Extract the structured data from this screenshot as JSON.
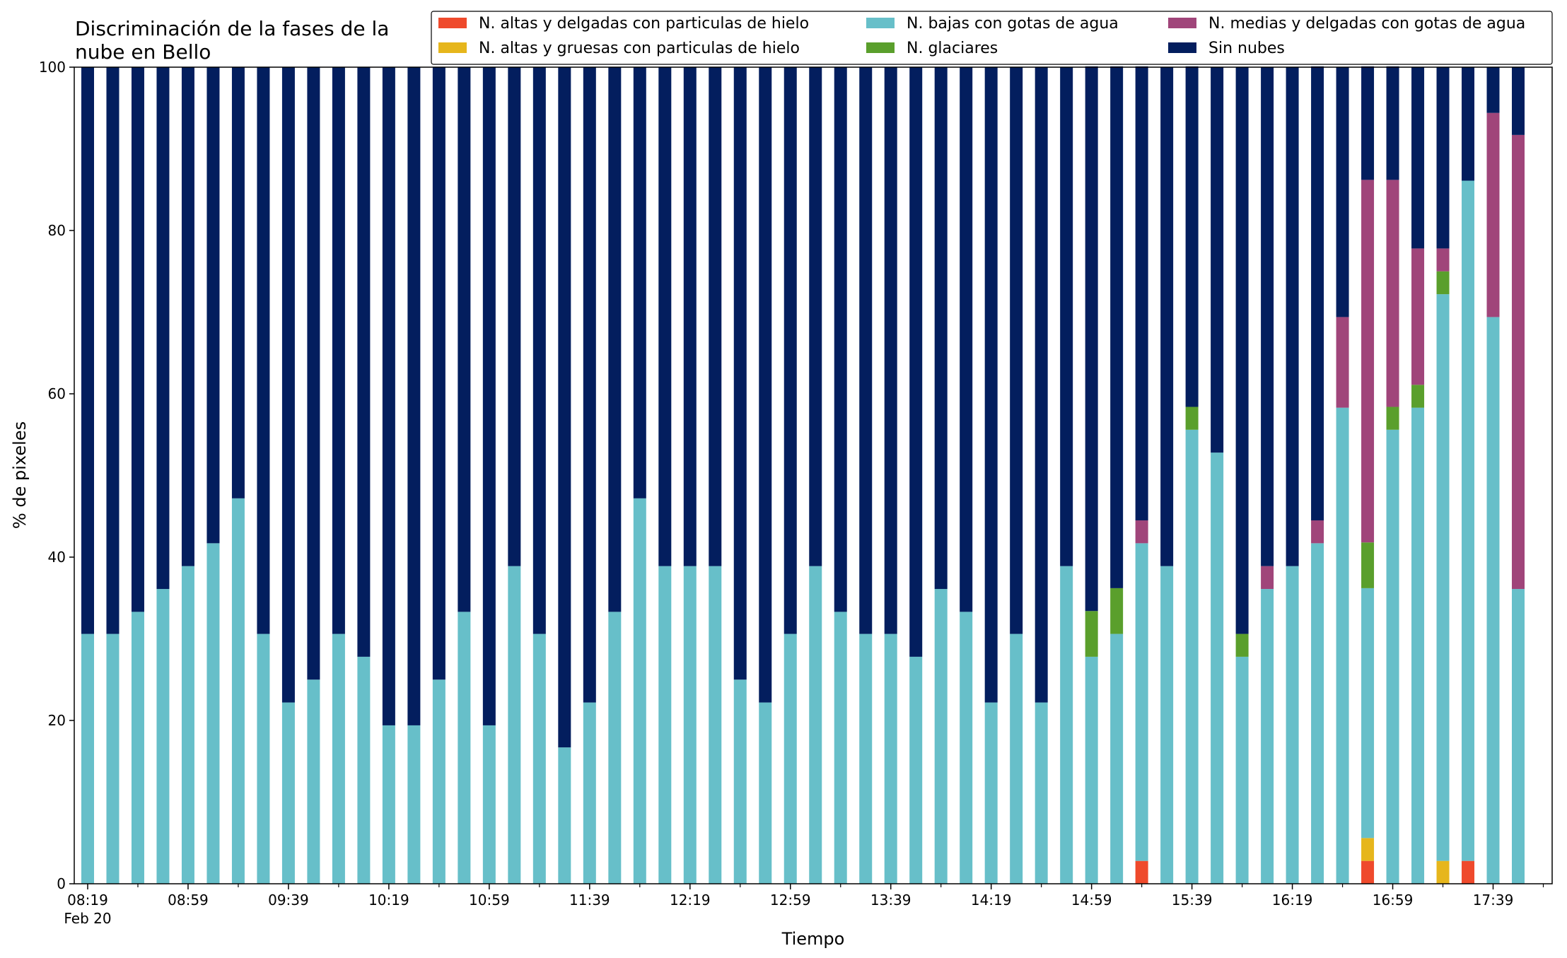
{
  "chart_data": {
    "type": "bar",
    "stacked": true,
    "title_lines": [
      "Discriminación de la fases de la",
      "nube en Bello"
    ],
    "xlabel": "Tiempo",
    "ylabel": "% de pixeles",
    "ylim": [
      0,
      100
    ],
    "yticks": [
      "0",
      "20",
      "40",
      "60",
      "80",
      "100"
    ],
    "x_tick_labels": [
      "08:19",
      "08:59",
      "09:39",
      "10:19",
      "10:59",
      "11:39",
      "12:19",
      "12:59",
      "13:39",
      "14:19",
      "14:59",
      "15:39",
      "16:19",
      "16:59",
      "17:39"
    ],
    "x_date_label": "Feb 20",
    "legend_position": "top-right",
    "grid": false,
    "categories": [
      "08:19",
      "08:29",
      "08:39",
      "08:49",
      "08:59",
      "09:09",
      "09:19",
      "09:29",
      "09:39",
      "09:49",
      "09:59",
      "10:09",
      "10:19",
      "10:29",
      "10:39",
      "10:49",
      "10:59",
      "11:09",
      "11:19",
      "11:29",
      "11:39",
      "11:49",
      "11:59",
      "12:09",
      "12:19",
      "12:29",
      "12:39",
      "12:49",
      "12:59",
      "13:09",
      "13:19",
      "13:29",
      "13:39",
      "13:49",
      "13:59",
      "14:09",
      "14:19",
      "14:29",
      "14:39",
      "14:49",
      "14:59",
      "15:09",
      "15:19",
      "15:29",
      "15:39",
      "15:49",
      "15:59",
      "16:09",
      "16:19",
      "16:29",
      "16:39",
      "16:49",
      "16:59",
      "17:09",
      "17:19",
      "17:29",
      "17:39",
      "17:49"
    ],
    "series": [
      {
        "name": "N. altas y delgadas con particulas de hielo",
        "color": "#ef4a2c",
        "values": [
          0,
          0,
          0,
          0,
          0,
          0,
          0,
          0,
          0,
          0,
          0,
          0,
          0,
          0,
          0,
          0,
          0,
          0,
          0,
          0,
          0,
          0,
          0,
          0,
          0,
          0,
          0,
          0,
          0,
          0,
          0,
          0,
          0,
          0,
          0,
          0,
          0,
          0,
          0,
          0,
          0,
          0,
          2.8,
          0,
          0,
          0,
          0,
          0,
          0,
          0,
          0,
          2.8,
          0,
          0,
          0,
          2.8,
          0,
          0
        ]
      },
      {
        "name": "N. altas y gruesas con particulas de hielo",
        "color": "#e6b61c",
        "values": [
          0,
          0,
          0,
          0,
          0,
          0,
          0,
          0,
          0,
          0,
          0,
          0,
          0,
          0,
          0,
          0,
          0,
          0,
          0,
          0,
          0,
          0,
          0,
          0,
          0,
          0,
          0,
          0,
          0,
          0,
          0,
          0,
          0,
          0,
          0,
          0,
          0,
          0,
          0,
          0,
          0,
          0,
          0,
          0,
          0,
          0,
          0,
          0,
          0,
          0,
          0,
          2.8,
          0,
          0,
          2.8,
          0,
          0,
          0
        ]
      },
      {
        "name": "N. bajas con gotas de agua",
        "color": "#67bfc9",
        "values": [
          30.6,
          30.6,
          33.3,
          36.1,
          38.9,
          41.7,
          47.2,
          30.6,
          22.2,
          25.0,
          30.6,
          27.8,
          19.4,
          19.4,
          25.0,
          33.3,
          19.4,
          38.9,
          30.6,
          16.7,
          22.2,
          33.3,
          47.2,
          38.9,
          38.9,
          38.9,
          25.0,
          22.2,
          30.6,
          38.9,
          33.3,
          30.6,
          30.6,
          27.8,
          36.1,
          33.3,
          22.2,
          30.6,
          22.2,
          38.9,
          27.8,
          30.6,
          38.9,
          38.9,
          55.6,
          52.8,
          27.8,
          36.1,
          38.9,
          41.7,
          58.3,
          30.6,
          55.6,
          58.3,
          69.4,
          83.3,
          69.4,
          36.1
        ]
      },
      {
        "name": "N. glaciares",
        "color": "#5a9f2c",
        "values": [
          0,
          0,
          0,
          0,
          0,
          0,
          0,
          0,
          0,
          0,
          0,
          0,
          0,
          0,
          0,
          0,
          0,
          0,
          0,
          0,
          0,
          0,
          0,
          0,
          0,
          0,
          0,
          0,
          0,
          0,
          0,
          0,
          0,
          0,
          0,
          0,
          0,
          0,
          0,
          0,
          5.6,
          5.6,
          0,
          0,
          2.8,
          0,
          2.8,
          0,
          0,
          0,
          0,
          5.6,
          2.8,
          2.8,
          2.8,
          0,
          0,
          0
        ]
      },
      {
        "name": "N. medias y delgadas con gotas de agua",
        "color": "#a0457a",
        "values": [
          0,
          0,
          0,
          0,
          0,
          0,
          0,
          0,
          0,
          0,
          0,
          0,
          0,
          0,
          0,
          0,
          0,
          0,
          0,
          0,
          0,
          0,
          0,
          0,
          0,
          0,
          0,
          0,
          0,
          0,
          0,
          0,
          0,
          0,
          0,
          0,
          0,
          0,
          0,
          0,
          0,
          0,
          2.8,
          0,
          0,
          0,
          0,
          2.8,
          0,
          2.8,
          11.1,
          44.4,
          27.8,
          16.7,
          2.8,
          0,
          25.0,
          55.6
        ]
      },
      {
        "name": "Sin nubes",
        "color": "#031e5e",
        "values": [
          69.4,
          69.4,
          66.7,
          63.9,
          61.1,
          58.3,
          52.8,
          69.4,
          77.8,
          75.0,
          69.4,
          72.2,
          80.6,
          80.6,
          75.0,
          66.7,
          80.6,
          61.1,
          69.4,
          83.3,
          77.8,
          66.7,
          52.8,
          61.1,
          61.1,
          61.1,
          75.0,
          77.8,
          69.4,
          61.1,
          66.7,
          69.4,
          69.4,
          72.2,
          63.9,
          66.7,
          77.8,
          69.4,
          77.8,
          61.1,
          66.7,
          63.9,
          55.6,
          61.1,
          41.7,
          47.2,
          69.4,
          61.1,
          61.1,
          55.6,
          30.6,
          13.9,
          13.9,
          22.2,
          22.2,
          13.9,
          5.6,
          8.3
        ]
      }
    ]
  }
}
